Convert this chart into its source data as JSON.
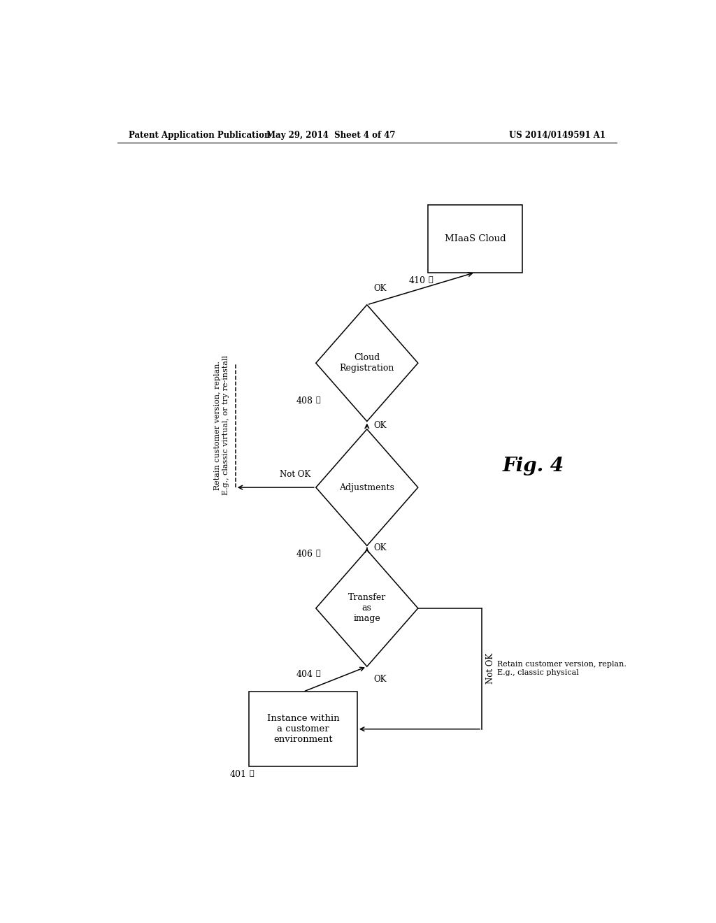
{
  "bg_color": "#ffffff",
  "header_left": "Patent Application Publication",
  "header_center": "May 29, 2014  Sheet 4 of 47",
  "header_right": "US 2014/0149591 A1",
  "fig_label": "Fig. 4",
  "box401_label": "Instance within\na customer\nenvironment",
  "box401_num": "401",
  "dia404_label": "Transfer\nas\nimage",
  "dia404_num": "404",
  "dia406_label": "Adjustments",
  "dia406_num": "406",
  "dia408_label": "Cloud\nRegistration",
  "dia408_num": "408",
  "box410_label": "MIaaS Cloud",
  "box410_num": "410",
  "label_notok_virtual": "Retain customer version, replan.\nE.g., classic virtual, or try re-install",
  "label_notok_physical": "Retain customer version, replan.\nE.g., classic physical",
  "ok_label": "OK",
  "notok_label": "Not OK"
}
